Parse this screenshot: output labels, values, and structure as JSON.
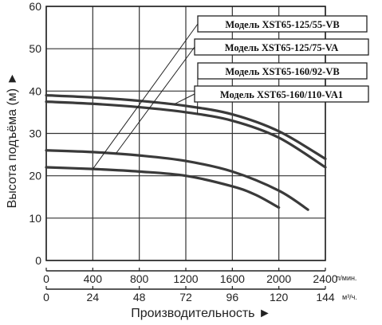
{
  "chart_data": {
    "type": "line",
    "title": "",
    "ylabel": "Высота подъёма (м) ►",
    "xlabel": "Производительность ►",
    "ylim": [
      0,
      60
    ],
    "xlim": [
      0,
      2400
    ],
    "yticks": [
      0,
      10,
      20,
      30,
      40,
      50,
      60
    ],
    "xticks_lmin": [
      0,
      400,
      800,
      1200,
      1600,
      2000,
      2400
    ],
    "xticks_m3h": [
      0,
      24,
      48,
      72,
      96,
      120,
      144
    ],
    "x_unit_top": "л/мин.",
    "x_unit_bottom": "м³/ч.",
    "grid": true,
    "legend_placement": "top-right",
    "series": [
      {
        "name": "Модель XST65-125/55-VB",
        "x": [
          0,
          400,
          800,
          1200,
          1600,
          1800,
          2000
        ],
        "y": [
          22,
          21.6,
          21,
          20,
          17.5,
          15.5,
          12.5
        ]
      },
      {
        "name": "Модель XST65-125/75-VA",
        "x": [
          0,
          400,
          800,
          1200,
          1600,
          2000,
          2250
        ],
        "y": [
          26,
          25.6,
          24.8,
          23.5,
          21,
          16.5,
          12
        ]
      },
      {
        "name": "Модель XST65-160/92-VB",
        "x": [
          0,
          400,
          800,
          1200,
          1600,
          2000,
          2400
        ],
        "y": [
          37.5,
          37,
          36.2,
          35,
          33,
          29,
          22
        ]
      },
      {
        "name": "Модель XST65-160/110-VA1",
        "x": [
          0,
          400,
          800,
          1200,
          1600,
          2000,
          2400
        ],
        "y": [
          39,
          38.5,
          37.7,
          36.5,
          34.5,
          30.5,
          24
        ]
      }
    ]
  }
}
